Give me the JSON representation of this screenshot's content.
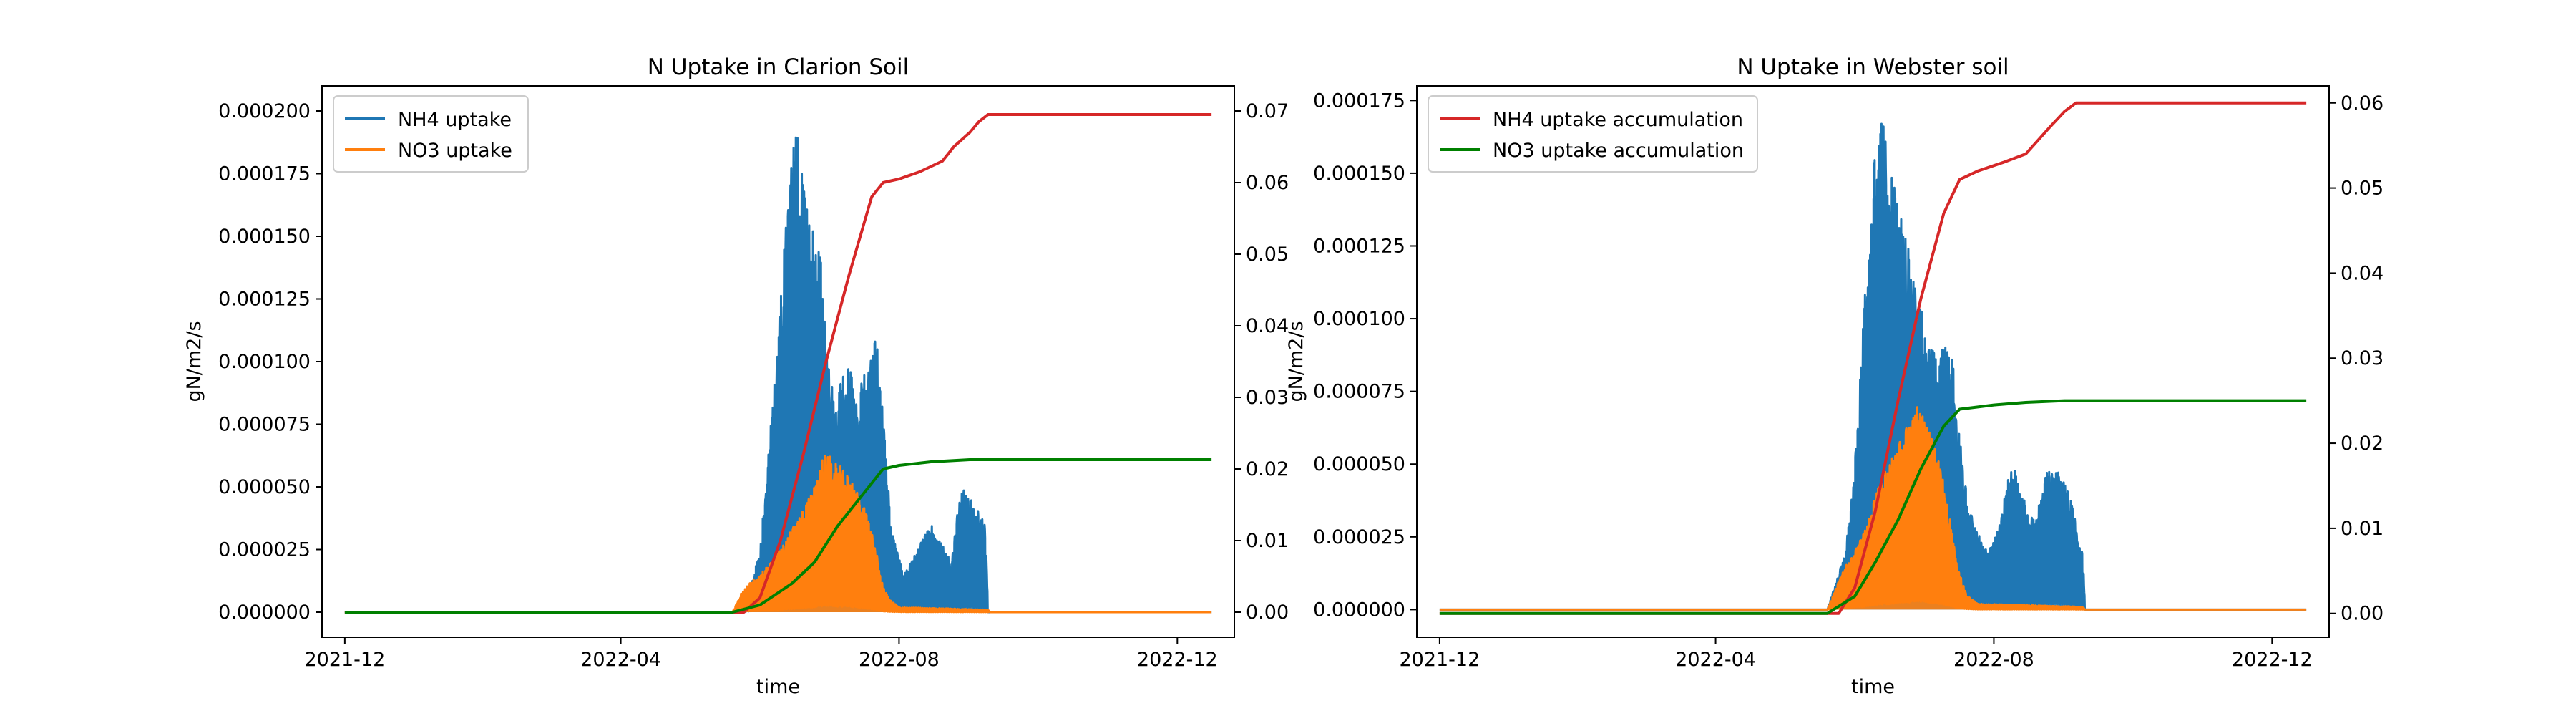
{
  "figure": {
    "background": "#ffffff",
    "colors": {
      "nh4_uptake": "#1f77b4",
      "no3_uptake": "#ff7f0e",
      "nh4_accum": "#d62728",
      "no3_accum": "#008000"
    }
  },
  "chart_data": [
    {
      "type": "area",
      "title": "N Uptake in Clarion Soil",
      "xlabel": "time",
      "ylabel": "gN/m2/s",
      "y2label": "",
      "x_tick_labels": [
        "2021-12",
        "2022-04",
        "2022-08",
        "2022-12"
      ],
      "x_tick_dates": [
        "2021-12-01",
        "2022-04-01",
        "2022-08-01",
        "2022-12-01"
      ],
      "xlim": [
        "2021-11-21",
        "2022-12-26"
      ],
      "ylim": [
        -1e-05,
        0.00021
      ],
      "y_ticks": [
        "0.000000",
        "0.000025",
        "0.000050",
        "0.000075",
        "0.000100",
        "0.000125",
        "0.000150",
        "0.000175",
        "0.000200"
      ],
      "y_tick_values": [
        0,
        2.5e-05,
        5e-05,
        7.5e-05,
        0.0001,
        0.000125,
        0.00015,
        0.000175,
        0.0002
      ],
      "y2lim": [
        -0.0035,
        0.0735
      ],
      "y2_ticks": [
        "0.00",
        "0.01",
        "0.02",
        "0.03",
        "0.04",
        "0.05",
        "0.06",
        "0.07"
      ],
      "y2_tick_values": [
        0,
        0.01,
        0.02,
        0.03,
        0.04,
        0.05,
        0.06,
        0.07
      ],
      "legend": {
        "placement": "upper-left",
        "entries": [
          "NH4 uptake",
          "NO3 uptake"
        ]
      },
      "series": [
        {
          "name": "NH4 uptake",
          "axis": "left",
          "style": "spiky",
          "points": [
            [
              "2021-12-01",
              0
            ],
            [
              "2022-05-20",
              0
            ],
            [
              "2022-05-24",
              5e-06
            ],
            [
              "2022-05-28",
              1e-05
            ],
            [
              "2022-06-01",
              2.5e-05
            ],
            [
              "2022-06-04",
              5.5e-05
            ],
            [
              "2022-06-07",
              9e-05
            ],
            [
              "2022-06-10",
              0.000125
            ],
            [
              "2022-06-13",
              0.000165
            ],
            [
              "2022-06-15",
              0.00019
            ],
            [
              "2022-06-17",
              0.000199
            ],
            [
              "2022-06-19",
              0.00018
            ],
            [
              "2022-06-22",
              0.00016
            ],
            [
              "2022-06-25",
              0.00015
            ],
            [
              "2022-06-28",
              0.00014
            ],
            [
              "2022-07-01",
              0.000105
            ],
            [
              "2022-07-04",
              8e-05
            ],
            [
              "2022-07-07",
              9.5e-05
            ],
            [
              "2022-07-10",
              0.0001
            ],
            [
              "2022-07-13",
              8.5e-05
            ],
            [
              "2022-07-16",
              9.5e-05
            ],
            [
              "2022-07-19",
              0.0001
            ],
            [
              "2022-07-22",
              0.00011
            ],
            [
              "2022-07-25",
              8e-05
            ],
            [
              "2022-07-28",
              4e-05
            ],
            [
              "2022-07-31",
              2.5e-05
            ],
            [
              "2022-08-03",
              1.5e-05
            ],
            [
              "2022-08-06",
              2e-05
            ],
            [
              "2022-08-09",
              2.5e-05
            ],
            [
              "2022-08-12",
              3e-05
            ],
            [
              "2022-08-15",
              3.5e-05
            ],
            [
              "2022-08-18",
              3e-05
            ],
            [
              "2022-08-21",
              2.5e-05
            ],
            [
              "2022-08-24",
              2e-05
            ],
            [
              "2022-08-27",
              4.5e-05
            ],
            [
              "2022-08-30",
              5e-05
            ],
            [
              "2022-09-02",
              4.5e-05
            ],
            [
              "2022-09-05",
              4e-05
            ],
            [
              "2022-09-08",
              3.5e-05
            ],
            [
              "2022-09-09",
              0
            ],
            [
              "2022-12-16",
              0
            ]
          ]
        },
        {
          "name": "NO3 uptake",
          "axis": "left",
          "style": "spiky",
          "points": [
            [
              "2021-12-01",
              0
            ],
            [
              "2022-05-20",
              0
            ],
            [
              "2022-05-24",
              8e-06
            ],
            [
              "2022-05-28",
              1.2e-05
            ],
            [
              "2022-06-01",
              1.5e-05
            ],
            [
              "2022-06-04",
              1.8e-05
            ],
            [
              "2022-06-07",
              2.2e-05
            ],
            [
              "2022-06-10",
              2.5e-05
            ],
            [
              "2022-06-13",
              3e-05
            ],
            [
              "2022-06-16",
              3.5e-05
            ],
            [
              "2022-06-19",
              4e-05
            ],
            [
              "2022-06-22",
              4.5e-05
            ],
            [
              "2022-06-25",
              5e-05
            ],
            [
              "2022-06-28",
              6e-05
            ],
            [
              "2022-07-01",
              6.5e-05
            ],
            [
              "2022-07-04",
              6e-05
            ],
            [
              "2022-07-07",
              5.8e-05
            ],
            [
              "2022-07-10",
              5.5e-05
            ],
            [
              "2022-07-13",
              5e-05
            ],
            [
              "2022-07-16",
              4.5e-05
            ],
            [
              "2022-07-19",
              3.5e-05
            ],
            [
              "2022-07-22",
              2.5e-05
            ],
            [
              "2022-07-25",
              1e-05
            ],
            [
              "2022-07-28",
              5e-06
            ],
            [
              "2022-08-01",
              2e-06
            ],
            [
              "2022-09-09",
              1e-06
            ],
            [
              "2022-09-10",
              0
            ],
            [
              "2022-12-16",
              0
            ]
          ]
        },
        {
          "name": "",
          "axis": "right",
          "style": "line",
          "color_key": "nh4_accum",
          "points": [
            [
              "2021-12-01",
              0
            ],
            [
              "2022-05-25",
              0
            ],
            [
              "2022-06-01",
              0.002
            ],
            [
              "2022-06-10",
              0.01
            ],
            [
              "2022-06-20",
              0.022
            ],
            [
              "2022-06-30",
              0.035
            ],
            [
              "2022-07-10",
              0.047
            ],
            [
              "2022-07-20",
              0.058
            ],
            [
              "2022-07-25",
              0.06
            ],
            [
              "2022-08-01",
              0.0605
            ],
            [
              "2022-08-10",
              0.0615
            ],
            [
              "2022-08-20",
              0.063
            ],
            [
              "2022-08-25",
              0.065
            ],
            [
              "2022-09-01",
              0.067
            ],
            [
              "2022-09-05",
              0.0685
            ],
            [
              "2022-09-09",
              0.0695
            ],
            [
              "2022-12-16",
              0.0695
            ]
          ]
        },
        {
          "name": "",
          "axis": "right",
          "style": "line",
          "color_key": "no3_accum",
          "points": [
            [
              "2021-12-01",
              0
            ],
            [
              "2022-05-20",
              0
            ],
            [
              "2022-06-01",
              0.001
            ],
            [
              "2022-06-15",
              0.004
            ],
            [
              "2022-06-25",
              0.007
            ],
            [
              "2022-07-05",
              0.012
            ],
            [
              "2022-07-15",
              0.016
            ],
            [
              "2022-07-25",
              0.02
            ],
            [
              "2022-08-01",
              0.0205
            ],
            [
              "2022-08-15",
              0.021
            ],
            [
              "2022-09-01",
              0.0213
            ],
            [
              "2022-12-16",
              0.0213
            ]
          ]
        }
      ]
    },
    {
      "type": "area",
      "title": "N Uptake in Webster soil",
      "xlabel": "time",
      "ylabel": "gN/m2/s",
      "y2label": "",
      "x_tick_labels": [
        "2021-12",
        "2022-04",
        "2022-08",
        "2022-12"
      ],
      "x_tick_dates": [
        "2021-12-01",
        "2022-04-01",
        "2022-08-01",
        "2022-12-01"
      ],
      "xlim": [
        "2021-11-21",
        "2022-12-26"
      ],
      "ylim": [
        -9.5e-06,
        0.00018
      ],
      "y_ticks": [
        "0.000000",
        "0.000025",
        "0.000050",
        "0.000075",
        "0.000100",
        "0.000125",
        "0.000150",
        "0.000175"
      ],
      "y_tick_values": [
        0,
        2.5e-05,
        5e-05,
        7.5e-05,
        0.0001,
        0.000125,
        0.00015,
        0.000175
      ],
      "y2lim": [
        -0.0028,
        0.062
      ],
      "y2_ticks": [
        "0.00",
        "0.01",
        "0.02",
        "0.03",
        "0.04",
        "0.05",
        "0.06"
      ],
      "y2_tick_values": [
        0,
        0.01,
        0.02,
        0.03,
        0.04,
        0.05,
        0.06
      ],
      "legend": {
        "placement": "upper-left",
        "entries": [
          "NH4 uptake accumulation",
          "NO3 uptake accumulation"
        ]
      },
      "series": [
        {
          "name": "",
          "axis": "left",
          "style": "spiky",
          "color_key": "nh4_uptake",
          "points": [
            [
              "2021-12-01",
              0
            ],
            [
              "2022-05-20",
              0
            ],
            [
              "2022-05-24",
              1e-05
            ],
            [
              "2022-05-28",
              2e-05
            ],
            [
              "2022-06-01",
              5e-05
            ],
            [
              "2022-06-04",
              9e-05
            ],
            [
              "2022-06-07",
              0.00013
            ],
            [
              "2022-06-10",
              0.00016
            ],
            [
              "2022-06-12",
              0.000172
            ],
            [
              "2022-06-14",
              0.000165
            ],
            [
              "2022-06-17",
              0.00015
            ],
            [
              "2022-06-20",
              0.00014
            ],
            [
              "2022-06-23",
              0.00013
            ],
            [
              "2022-06-26",
              0.00012
            ],
            [
              "2022-06-29",
              0.00011
            ],
            [
              "2022-07-02",
              9.5e-05
            ],
            [
              "2022-07-05",
              9e-05
            ],
            [
              "2022-07-08",
              8.5e-05
            ],
            [
              "2022-07-11",
              9.5e-05
            ],
            [
              "2022-07-14",
              8.5e-05
            ],
            [
              "2022-07-17",
              6e-05
            ],
            [
              "2022-07-20",
              4e-05
            ],
            [
              "2022-07-23",
              3e-05
            ],
            [
              "2022-07-26",
              2.5e-05
            ],
            [
              "2022-07-29",
              2e-05
            ],
            [
              "2022-08-01",
              2.5e-05
            ],
            [
              "2022-08-04",
              3e-05
            ],
            [
              "2022-08-07",
              4.5e-05
            ],
            [
              "2022-08-10",
              5e-05
            ],
            [
              "2022-08-13",
              4e-05
            ],
            [
              "2022-08-16",
              3.5e-05
            ],
            [
              "2022-08-19",
              3e-05
            ],
            [
              "2022-08-22",
              4e-05
            ],
            [
              "2022-08-25",
              5e-05
            ],
            [
              "2022-08-28",
              5e-05
            ],
            [
              "2022-08-31",
              4.5e-05
            ],
            [
              "2022-09-03",
              4e-05
            ],
            [
              "2022-09-06",
              3e-05
            ],
            [
              "2022-09-09",
              2e-05
            ],
            [
              "2022-09-10",
              0
            ],
            [
              "2022-12-16",
              0
            ]
          ]
        },
        {
          "name": "",
          "axis": "left",
          "style": "spiky",
          "color_key": "no3_uptake",
          "points": [
            [
              "2021-12-01",
              0
            ],
            [
              "2022-05-20",
              0
            ],
            [
              "2022-05-24",
              8e-06
            ],
            [
              "2022-05-28",
              1.5e-05
            ],
            [
              "2022-06-01",
              2e-05
            ],
            [
              "2022-06-04",
              2.5e-05
            ],
            [
              "2022-06-07",
              3e-05
            ],
            [
              "2022-06-10",
              4e-05
            ],
            [
              "2022-06-13",
              4.5e-05
            ],
            [
              "2022-06-16",
              5e-05
            ],
            [
              "2022-06-19",
              5.5e-05
            ],
            [
              "2022-06-22",
              6e-05
            ],
            [
              "2022-06-25",
              6.5e-05
            ],
            [
              "2022-06-28",
              7e-05
            ],
            [
              "2022-07-01",
              6.8e-05
            ],
            [
              "2022-07-04",
              6.2e-05
            ],
            [
              "2022-07-07",
              5.5e-05
            ],
            [
              "2022-07-10",
              4.5e-05
            ],
            [
              "2022-07-13",
              3e-05
            ],
            [
              "2022-07-16",
              1.5e-05
            ],
            [
              "2022-07-20",
              5e-06
            ],
            [
              "2022-07-25",
              2e-06
            ],
            [
              "2022-09-09",
              1e-06
            ],
            [
              "2022-09-10",
              0
            ],
            [
              "2022-12-16",
              0
            ]
          ]
        },
        {
          "name": "NH4 uptake accumulation",
          "axis": "right",
          "style": "line",
          "points": [
            [
              "2021-12-01",
              0
            ],
            [
              "2022-05-25",
              0
            ],
            [
              "2022-06-01",
              0.003
            ],
            [
              "2022-06-10",
              0.012
            ],
            [
              "2022-06-20",
              0.025
            ],
            [
              "2022-06-30",
              0.037
            ],
            [
              "2022-07-10",
              0.047
            ],
            [
              "2022-07-17",
              0.051
            ],
            [
              "2022-07-25",
              0.052
            ],
            [
              "2022-08-05",
              0.053
            ],
            [
              "2022-08-15",
              0.054
            ],
            [
              "2022-08-25",
              0.057
            ],
            [
              "2022-09-01",
              0.059
            ],
            [
              "2022-09-06",
              0.06
            ],
            [
              "2022-12-16",
              0.06
            ]
          ]
        },
        {
          "name": "NO3 uptake accumulation",
          "axis": "right",
          "style": "line",
          "points": [
            [
              "2021-12-01",
              0
            ],
            [
              "2022-05-20",
              0
            ],
            [
              "2022-06-01",
              0.002
            ],
            [
              "2022-06-10",
              0.006
            ],
            [
              "2022-06-20",
              0.011
            ],
            [
              "2022-06-30",
              0.017
            ],
            [
              "2022-07-10",
              0.022
            ],
            [
              "2022-07-17",
              0.024
            ],
            [
              "2022-08-01",
              0.0245
            ],
            [
              "2022-08-15",
              0.0248
            ],
            [
              "2022-09-01",
              0.025
            ],
            [
              "2022-12-16",
              0.025
            ]
          ]
        }
      ]
    }
  ]
}
